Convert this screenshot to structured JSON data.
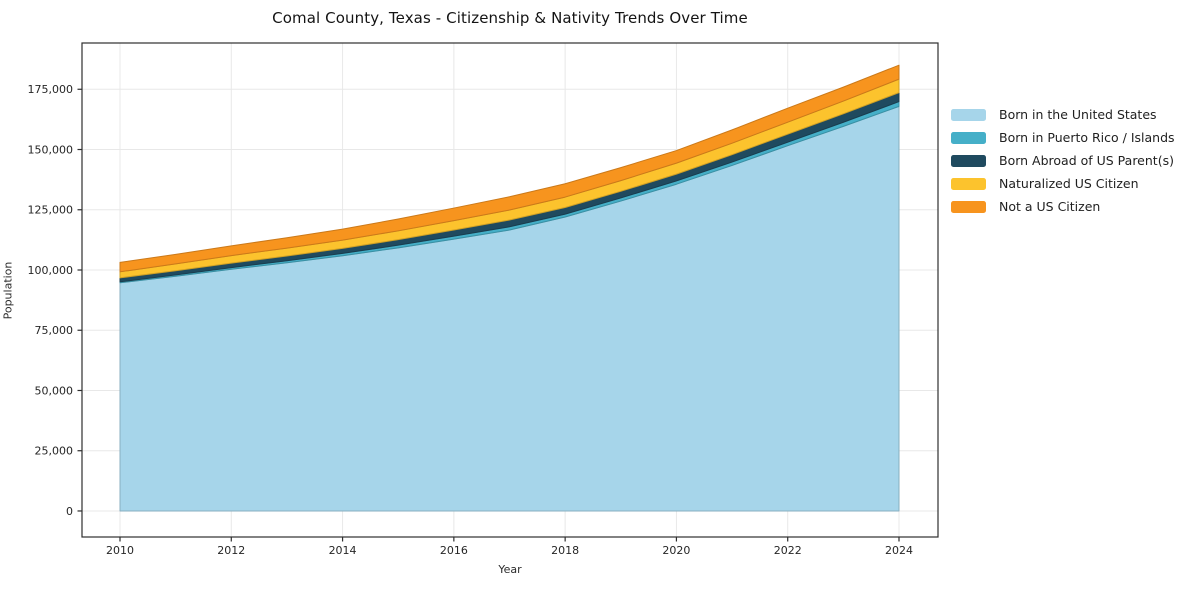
{
  "title": "Comal County, Texas - Citizenship & Nativity Trends Over Time",
  "chart_data": {
    "type": "area",
    "stacked": true,
    "title": "Comal County, Texas - Citizenship & Nativity Trends Over Time",
    "xlabel": "Year",
    "ylabel": "Population",
    "x": [
      2010,
      2011,
      2012,
      2013,
      2014,
      2015,
      2016,
      2017,
      2018,
      2019,
      2020,
      2021,
      2022,
      2023,
      2024
    ],
    "series": [
      {
        "name": "Born in the United States",
        "color": "#A6D5EA",
        "values": [
          94700,
          97400,
          100300,
          103000,
          105900,
          109200,
          112800,
          116600,
          122000,
          128600,
          135600,
          143400,
          151600,
          159600,
          167900
        ]
      },
      {
        "name": "Born in Puerto Rico / Islands",
        "color": "#45AFC8",
        "values": [
          400,
          550,
          700,
          850,
          1000,
          1100,
          1250,
          1350,
          1200,
          1300,
          1400,
          1400,
          1450,
          1700,
          2000
        ]
      },
      {
        "name": "Born Abroad of US Parent(s)",
        "color": "#1F4A5F",
        "values": [
          1650,
          1740,
          1830,
          1950,
          2070,
          2300,
          2550,
          2780,
          2750,
          2760,
          2780,
          3050,
          3320,
          3510,
          3700
        ]
      },
      {
        "name": "Naturalized US Citizen",
        "color": "#FCC32D",
        "values": [
          2500,
          2830,
          3150,
          3300,
          3440,
          3660,
          3900,
          4150,
          4310,
          4430,
          4560,
          4770,
          4980,
          5290,
          5600
        ]
      },
      {
        "name": "Not a US Citizen",
        "color": "#F7941E",
        "values": [
          3900,
          3960,
          4020,
          4290,
          4560,
          4900,
          5200,
          5520,
          5520,
          5380,
          5230,
          5520,
          5810,
          5800,
          5800
        ]
      }
    ],
    "xticks": [
      2010,
      2012,
      2014,
      2016,
      2018,
      2020,
      2022,
      2024
    ],
    "yticks": [
      0,
      25000,
      50000,
      75000,
      100000,
      125000,
      150000,
      175000
    ],
    "xlim": [
      2009.317,
      2024.701
    ],
    "ylim": [
      -10800,
      194200
    ],
    "grid": true,
    "grid_color": "#e8e8e8",
    "spine_color": "#2e2e2e",
    "tick_label_color": "#262626",
    "legend_position": "right"
  }
}
